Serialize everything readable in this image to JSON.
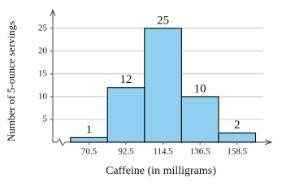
{
  "chart_data": {
    "type": "histogram",
    "x_label": "Caffeine (in milligrams)",
    "y_label": "Number of 5-ounce servings",
    "bins": [
      59.5,
      81.5,
      103.5,
      125.5,
      147.5,
      169.5
    ],
    "counts": [
      1,
      12,
      25,
      10,
      2
    ],
    "color": "#8fd0f0",
    "xlim": [
      49,
      177
    ],
    "xticks": [
      70.5,
      92.5,
      114.5,
      136.5,
      158.5
    ],
    "ylim": [
      0,
      28
    ],
    "yticks": [
      5,
      10,
      15,
      20,
      25
    ],
    "grid": true
  }
}
